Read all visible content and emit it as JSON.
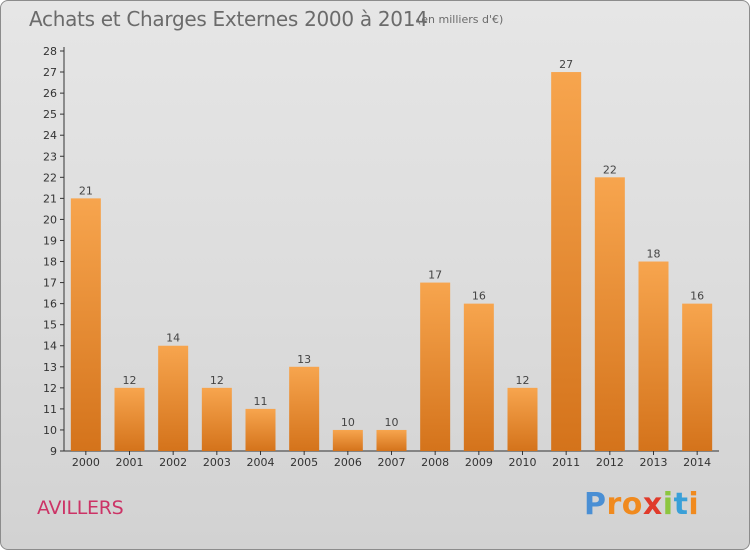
{
  "header": {
    "title": "Achats et Charges Externes 2000 à 2014",
    "unit": "(en milliers d'€)"
  },
  "footer": {
    "city": "AVILLERS",
    "logo": "Proxiti"
  },
  "colors": {
    "bar_light": "#f7a54e",
    "bar_dark": "#d4731b",
    "city": "#cc3366",
    "logo_letters": [
      "#4a8fd4",
      "#f08a1e",
      "#f08a1e",
      "#e03a2a",
      "#8cc63f",
      "#3aa0d8",
      "#f08a1e"
    ]
  },
  "chart_data": {
    "type": "bar",
    "categories": [
      "2000",
      "2001",
      "2002",
      "2003",
      "2004",
      "2005",
      "2006",
      "2007",
      "2008",
      "2009",
      "2010",
      "2011",
      "2012",
      "2013",
      "2014"
    ],
    "values": [
      21,
      12,
      14,
      12,
      11,
      13,
      10,
      10,
      17,
      16,
      12,
      27,
      22,
      18,
      16
    ],
    "ylim": [
      9,
      28
    ],
    "yticks": [
      9,
      10,
      11,
      12,
      13,
      14,
      15,
      16,
      17,
      18,
      19,
      20,
      21,
      22,
      23,
      24,
      25,
      26,
      27,
      28
    ],
    "grid": false,
    "data_labels": true,
    "legend": "none"
  }
}
